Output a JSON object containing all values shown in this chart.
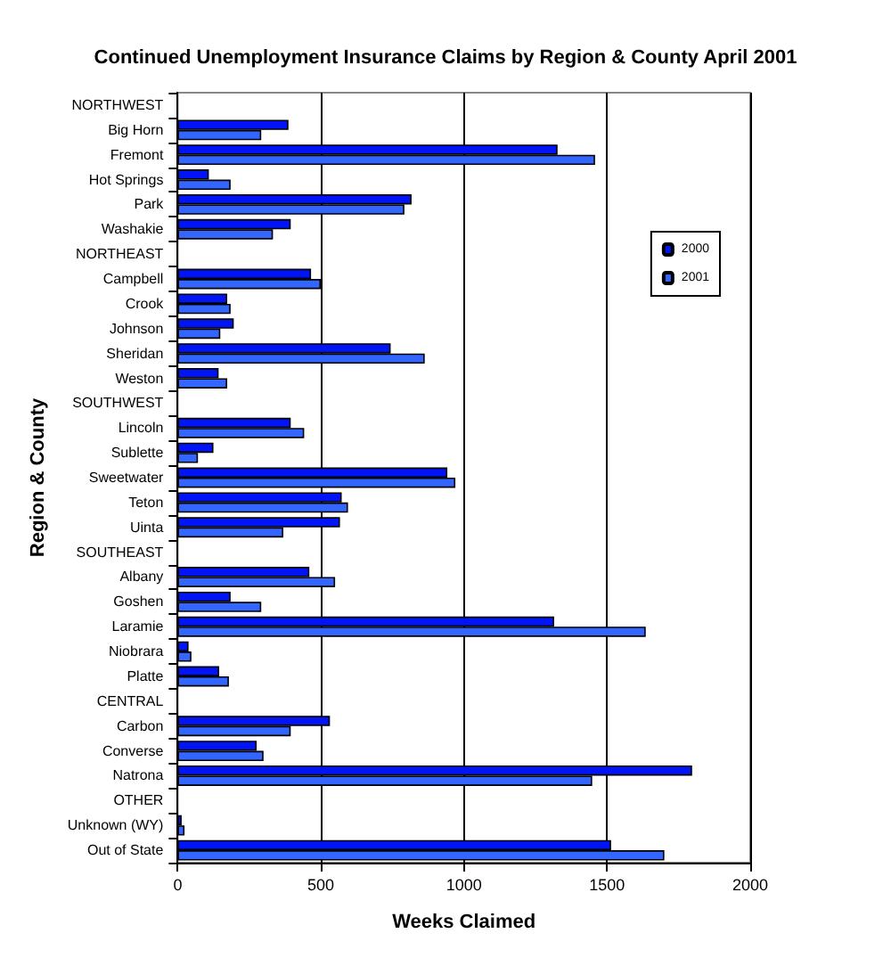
{
  "chart_data": {
    "type": "bar",
    "orientation": "horizontal",
    "title": "Continued Unemployment Insurance Claims by Region & County April 2001",
    "xlabel": "Weeks Claimed",
    "ylabel": "Region & County",
    "categories": [
      "NORTHWEST",
      "Big Horn",
      "Fremont",
      "Hot Springs",
      "Park",
      "Washakie",
      "NORTHEAST",
      "Campbell",
      "Crook",
      "Johnson",
      "Sheridan",
      "Weston",
      "SOUTHWEST",
      "Lincoln",
      "Sublette",
      "Sweetwater",
      "Teton",
      "Uinta",
      "SOUTHEAST",
      "Albany",
      "Goshen",
      "Laramie",
      "Niobrara",
      "Platte",
      "CENTRAL",
      "Carbon",
      "Converse",
      "Natrona",
      "OTHER",
      "Unknown (WY)",
      "Out of State"
    ],
    "series": [
      {
        "name": "2000",
        "color": "#0014f5",
        "values": [
          null,
          387,
          1327,
          109,
          817,
          395,
          null,
          466,
          173,
          196,
          744,
          143,
          null,
          395,
          125,
          942,
          573,
          567,
          null,
          460,
          185,
          1315,
          38,
          145,
          null,
          532,
          276,
          1797,
          null,
          14,
          1514
        ]
      },
      {
        "name": "2001",
        "color": "#3366ff",
        "values": [
          null,
          292,
          1458,
          185,
          792,
          333,
          null,
          500,
          185,
          149,
          863,
          173,
          null,
          442,
          71,
          970,
          595,
          369,
          null,
          550,
          292,
          1635,
          48,
          179,
          null,
          395,
          300,
          1448,
          null,
          24,
          1700
        ]
      }
    ],
    "xlim": [
      0,
      2000
    ],
    "xticks": [
      0,
      500,
      1000,
      1500,
      2000
    ],
    "grid": "x",
    "legend": "right"
  }
}
